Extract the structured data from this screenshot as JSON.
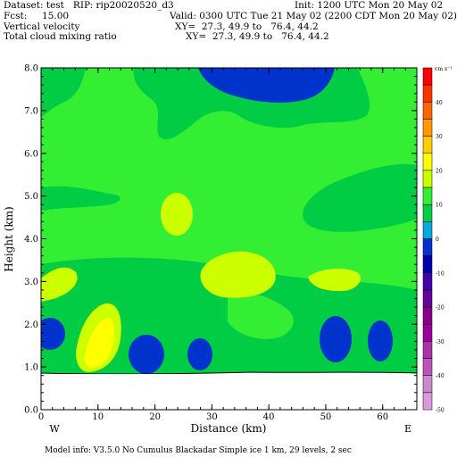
{
  "header": {
    "line1_left": "Dataset: test   RIP: rip20020520_d3",
    "line1_right": "Init: 1200 UTC Mon 20 May 02",
    "line2_left": "Fcst:     15.00",
    "line2_right": "Valid: 0300 UTC Tue 21 May 02 (2200 CDT Mon 20 May 02)",
    "line3_left": "Vertical velocity",
    "line3_right": "XY=  27.3, 49.9 to   76.4, 44.2",
    "line4_left": "Total cloud mixing ratio",
    "line4_right": "XY=  27.3, 49.9 to   76.4, 44.2"
  },
  "footer": {
    "model_info": "Model info: V3.5.0 No Cumulus Blackadar  Simple ice     1 km,  29 levels,     2 sec"
  },
  "colors": {
    "light_green": "#33ee33",
    "mid_green": "#00cc44",
    "yellow_green": "#ccff00",
    "yellow": "#ffff00",
    "blue": "#0033cc"
  },
  "chart_data": {
    "type": "heatmap",
    "xlabel": "Distance (km)",
    "ylabel": "Height (km)",
    "xlim": [
      0,
      66
    ],
    "ylim": [
      0,
      8
    ],
    "x_ticks": [
      "0",
      "10",
      "20",
      "30",
      "40",
      "50",
      "60"
    ],
    "y_ticks": [
      "0.0",
      "1.0",
      "2.0",
      "3.0",
      "4.0",
      "5.0",
      "6.0",
      "7.0",
      "8.0"
    ],
    "x_end_labels": {
      "left": "W",
      "right": "E"
    },
    "colorbar": {
      "unit": "cm s⁻¹",
      "labels": [
        "40",
        "30",
        "20",
        "10",
        "0",
        "-10",
        "-20",
        "-30",
        "-40",
        "-50"
      ]
    }
  }
}
